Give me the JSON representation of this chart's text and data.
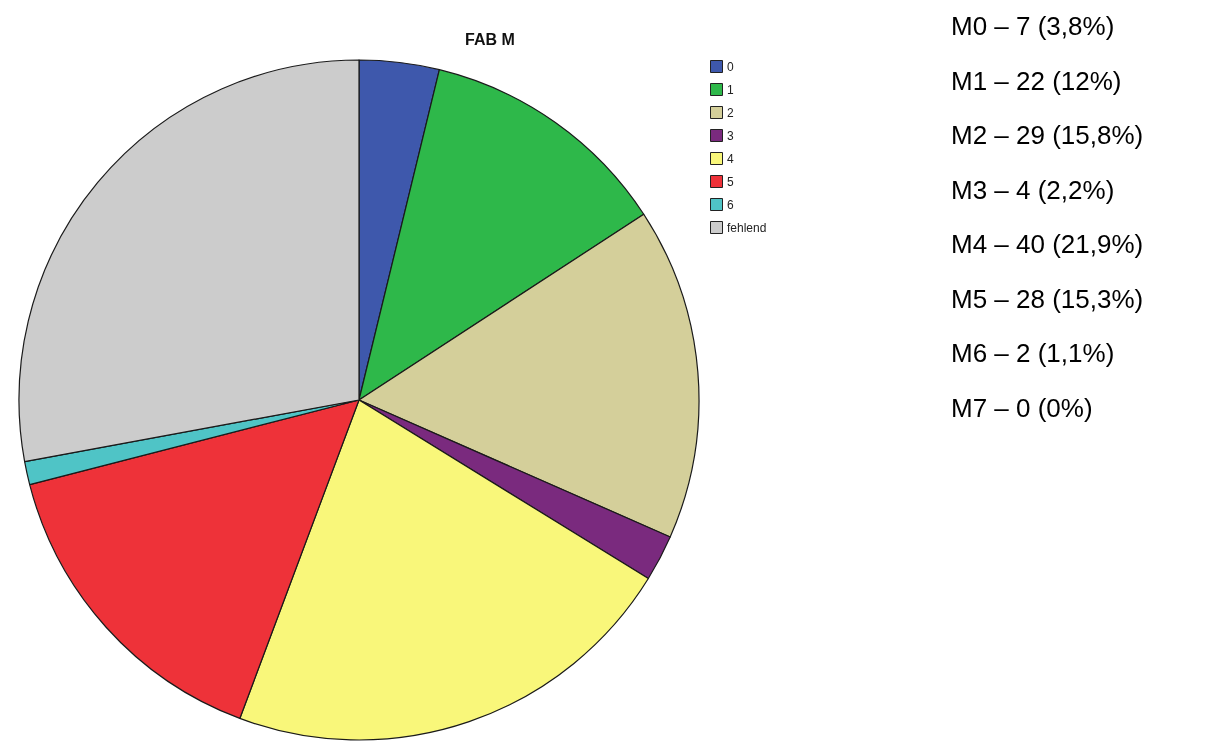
{
  "chart_data": {
    "type": "pie",
    "title": "FAB M",
    "categories": [
      "0",
      "1",
      "2",
      "3",
      "4",
      "5",
      "6",
      "fehlend"
    ],
    "values": [
      3.8,
      12,
      15.8,
      2.2,
      21.9,
      15.3,
      1.1,
      27.9
    ],
    "colors": [
      "#3e58ac",
      "#2eb84a",
      "#d4cf9a",
      "#7a2a7e",
      "#f9f77a",
      "#ee3239",
      "#4fc4c6",
      "#cccccc"
    ],
    "legend": "top right",
    "annotations": [
      "M0 – 7 (3,8%)",
      "M1 – 22 (12%)",
      "M2 – 29 (15,8%)",
      "M3 – 4 (2,2%)",
      "M4 – 40 (21,9%)",
      "M5 – 28 (15,3%)",
      "M6 – 2 (1,1%)",
      "M7 – 0 (0%)"
    ]
  }
}
